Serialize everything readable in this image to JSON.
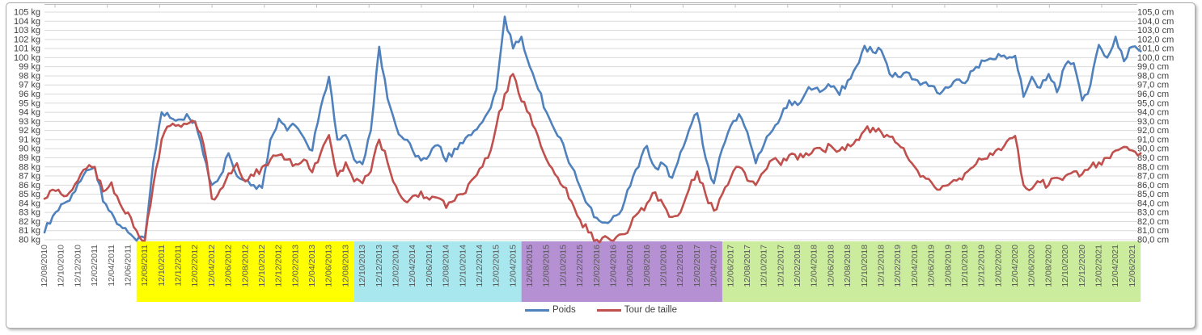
{
  "legend": {
    "items": [
      {
        "label": "Poids",
        "color": "#4F81BD"
      },
      {
        "label": "Tour de taille",
        "color": "#C0504D"
      }
    ]
  },
  "chart_data": {
    "type": "line",
    "title": "",
    "grid": true,
    "grid_color": "#D9D9D9",
    "axis_text_color": "#404040",
    "x_label_text_color": "#595959",
    "y_axis_left": {
      "unit": "kg",
      "min": 80,
      "max": 105,
      "step": 1,
      "labels": [
        "105 kg",
        "104 kg",
        "103 kg",
        "102 kg",
        "101 kg",
        "100 kg",
        "99 kg",
        "98 kg",
        "97 kg",
        "96 kg",
        "95 kg",
        "94 kg",
        "93 kg",
        "92 kg",
        "91 kg",
        "90 kg",
        "89 kg",
        "88 kg",
        "87 kg",
        "86 kg",
        "85 kg",
        "84 kg",
        "83 kg",
        "82 kg",
        "81 kg",
        "80 kg"
      ]
    },
    "y_axis_right": {
      "unit": "cm",
      "min": 80,
      "max": 105,
      "step": 1,
      "labels": [
        "105,0 cm",
        "104,0 cm",
        "103,0 cm",
        "102,0 cm",
        "101,0 cm",
        "100,0 cm",
        "99,0 cm",
        "98,0 cm",
        "97,0 cm",
        "96,0 cm",
        "95,0 cm",
        "94,0 cm",
        "93,0 cm",
        "92,0 cm",
        "91,0 cm",
        "90,0 cm",
        "89,0 cm",
        "88,0 cm",
        "87,0 cm",
        "86,0 cm",
        "85,0 cm",
        "84,0 cm",
        "83,0 cm",
        "82,0 cm",
        "81,0 cm",
        "80,0 cm"
      ]
    },
    "x_labels": [
      "12/08/2010",
      "12/10/2010",
      "12/12/2010",
      "12/02/2011",
      "12/04/2011",
      "12/06/2011",
      "12/08/2011",
      "12/10/2011",
      "12/12/2011",
      "12/02/2012",
      "12/04/2012",
      "12/06/2012",
      "12/08/2012",
      "12/10/2012",
      "12/12/2012",
      "12/02/2013",
      "12/04/2013",
      "12/06/2013",
      "12/08/2013",
      "12/10/2013",
      "12/12/2013",
      "12/02/2014",
      "12/04/2014",
      "12/06/2014",
      "12/08/2014",
      "12/10/2014",
      "12/12/2014",
      "12/02/2015",
      "12/04/2015",
      "12/06/2015",
      "12/08/2015",
      "12/10/2015",
      "12/12/2015",
      "12/02/2016",
      "12/04/2016",
      "12/06/2016",
      "12/08/2016",
      "12/10/2016",
      "12/12/2016",
      "12/02/2017",
      "12/04/2017",
      "12/06/2017",
      "12/08/2017",
      "12/10/2017",
      "12/12/2017",
      "12/02/2018",
      "12/04/2018",
      "12/06/2018",
      "12/08/2018",
      "12/10/2018",
      "12/12/2018",
      "12/02/2019",
      "12/04/2019",
      "12/06/2019",
      "12/08/2019",
      "12/10/2019",
      "12/12/2019",
      "12/02/2020",
      "12/04/2020",
      "12/06/2020",
      "12/08/2020",
      "12/10/2020",
      "12/12/2020",
      "12/02/2021",
      "12/04/2021",
      "12/06/2021"
    ],
    "x_label_bands": [
      {
        "from_index": 0,
        "to_index": 5,
        "color": "none"
      },
      {
        "from_index": 6,
        "to_index": 18,
        "color": "#FFFF00"
      },
      {
        "from_index": 19,
        "to_index": 28,
        "color": "#A9E7EE"
      },
      {
        "from_index": 29,
        "to_index": 40,
        "color": "#B590D2"
      },
      {
        "from_index": 41,
        "to_index": 65,
        "color": "#CAEC9C"
      }
    ],
    "months_per_x_label": 2,
    "series": [
      {
        "name": "Poids",
        "axis": "left",
        "color": "#4F81BD",
        "values": [
          80.8,
          82.6,
          83.9,
          84.3,
          86.2,
          87.6,
          88.0,
          84.2,
          83.0,
          81.6,
          80.8,
          79.9,
          80.2,
          88.5,
          94.0,
          93.4,
          93.2,
          93.8,
          93.0,
          89.3,
          86.0,
          87.0,
          89.5,
          87.0,
          86.5,
          86.0,
          85.7,
          91.0,
          93.3,
          92.0,
          92.5,
          91.2,
          89.8,
          94.5,
          97.9,
          91.0,
          91.5,
          88.8,
          88.3,
          92.0,
          101.2,
          95.5,
          92.5,
          91.0,
          89.8,
          88.7,
          89.3,
          90.4,
          88.6,
          90.0,
          90.6,
          91.5,
          92.6,
          94.0,
          96.5,
          104.5,
          101.0,
          102.3,
          99.0,
          96.5,
          94.0,
          92.0,
          90.5,
          88.0,
          85.8,
          83.8,
          82.4,
          81.9,
          82.6,
          83.3,
          85.9,
          88.0,
          90.3,
          87.9,
          88.3,
          86.8,
          89.6,
          92.0,
          93.9,
          89.0,
          86.2,
          90.0,
          92.5,
          93.8,
          91.8,
          88.4,
          90.5,
          92.0,
          93.5,
          95.3,
          94.8,
          96.2,
          96.6,
          96.4,
          96.8,
          95.9,
          97.5,
          99.0,
          101.3,
          100.6,
          100.8,
          98.2,
          97.9,
          98.4,
          97.6,
          97.2,
          96.9,
          96.0,
          96.7,
          97.6,
          97.2,
          98.6,
          99.7,
          99.9,
          100.4,
          99.9,
          100.2,
          95.7,
          97.9,
          96.7,
          98.2,
          96.2,
          99.2,
          99.4,
          95.3,
          97.0,
          101.4,
          100.0,
          102.3,
          99.6,
          101.2,
          100.7
        ]
      },
      {
        "name": "Tour de taille",
        "axis": "right",
        "color": "#C0504D",
        "values": [
          84.5,
          85.5,
          85.0,
          85.2,
          86.5,
          87.8,
          88.0,
          85.3,
          86.3,
          84.0,
          83.0,
          81.0,
          79.9,
          86.0,
          91.0,
          92.5,
          92.6,
          92.7,
          92.9,
          90.5,
          84.5,
          85.5,
          87.3,
          88.4,
          86.4,
          87.0,
          88.0,
          88.8,
          89.3,
          88.8,
          88.3,
          88.8,
          87.4,
          89.5,
          91.5,
          87.0,
          88.5,
          86.4,
          86.2,
          87.5,
          91.0,
          88.5,
          85.9,
          84.3,
          84.8,
          85.3,
          84.4,
          84.6,
          83.5,
          84.3,
          85.0,
          86.5,
          87.8,
          89.0,
          92.5,
          96.0,
          98.2,
          95.2,
          93.8,
          91.3,
          88.8,
          87.2,
          85.8,
          84.2,
          82.2,
          80.8,
          80.0,
          80.4,
          79.9,
          80.6,
          81.5,
          83.0,
          84.0,
          85.2,
          83.8,
          82.5,
          83.0,
          85.5,
          87.5,
          85.0,
          83.2,
          85.0,
          86.8,
          88.0,
          86.5,
          86.0,
          87.5,
          88.8,
          88.2,
          89.3,
          88.8,
          89.5,
          90.0,
          89.8,
          90.3,
          89.8,
          90.5,
          91.0,
          92.0,
          92.3,
          91.8,
          91.3,
          90.5,
          89.3,
          88.0,
          87.0,
          86.3,
          85.5,
          86.0,
          86.5,
          87.3,
          88.0,
          88.8,
          89.5,
          90.0,
          90.8,
          91.4,
          86.0,
          85.6,
          86.3,
          86.0,
          86.8,
          87.0,
          87.5,
          87.2,
          88.0,
          88.5,
          89.0,
          89.8,
          90.2,
          89.8,
          89.5
        ]
      }
    ]
  }
}
